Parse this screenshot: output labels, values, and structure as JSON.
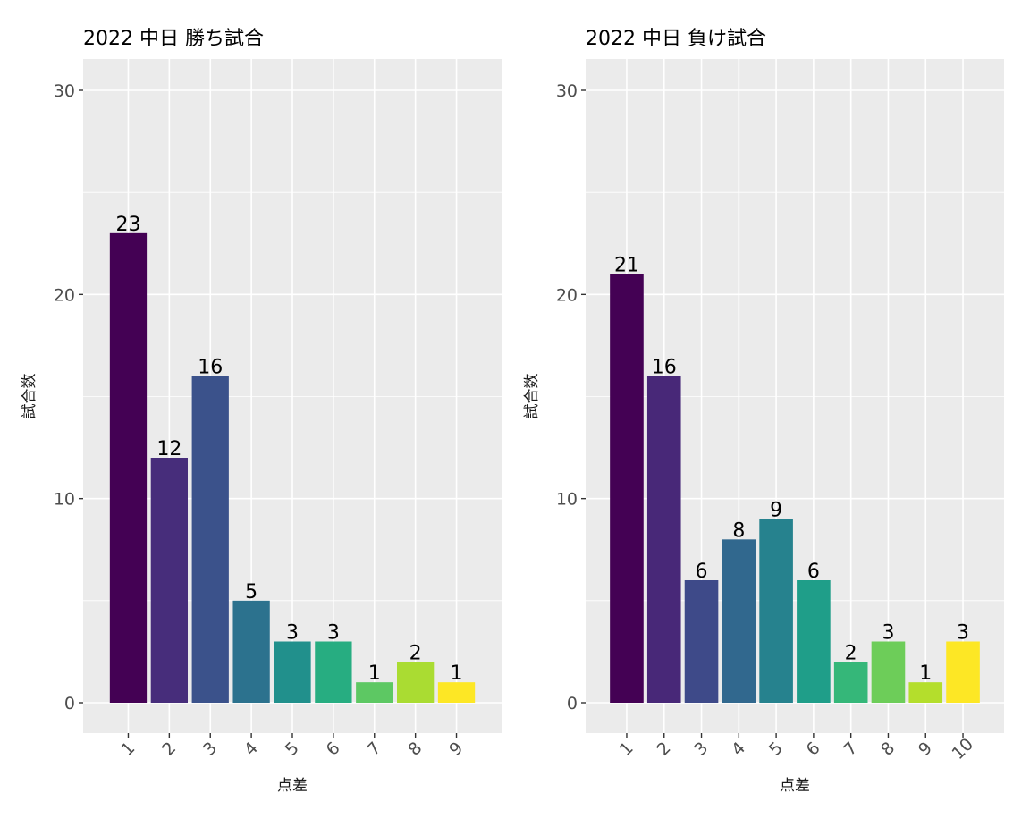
{
  "chart_data": [
    {
      "type": "bar",
      "title": "2022 中日 勝ち試合",
      "xlabel": "点差",
      "ylabel": "試合数",
      "categories": [
        "1",
        "2",
        "3",
        "4",
        "5",
        "6",
        "7",
        "8",
        "9"
      ],
      "values": [
        23,
        12,
        16,
        5,
        3,
        3,
        1,
        2,
        1
      ],
      "colors": [
        "#440154",
        "#472D7B",
        "#3B528B",
        "#2C728E",
        "#21908C",
        "#27AD81",
        "#5DC863",
        "#AADC32",
        "#FDE725"
      ],
      "ylim": [
        0,
        30
      ],
      "yticks": [
        "0",
        "10",
        "20",
        "30"
      ],
      "grid": true,
      "legend": "none"
    },
    {
      "type": "bar",
      "title": "2022 中日 負け試合",
      "xlabel": "点差",
      "ylabel": "試合数",
      "categories": [
        "1",
        "2",
        "3",
        "4",
        "5",
        "6",
        "7",
        "8",
        "9",
        "10"
      ],
      "values": [
        21,
        16,
        6,
        8,
        9,
        6,
        2,
        3,
        1,
        3
      ],
      "colors": [
        "#440154",
        "#482878",
        "#3E4A89",
        "#31688E",
        "#26828E",
        "#1F9E89",
        "#35B779",
        "#6DCD59",
        "#B4DE2C",
        "#FDE725"
      ],
      "ylim": [
        0,
        30
      ],
      "yticks": [
        "0",
        "10",
        "20",
        "30"
      ],
      "grid": true,
      "legend": "none"
    }
  ]
}
